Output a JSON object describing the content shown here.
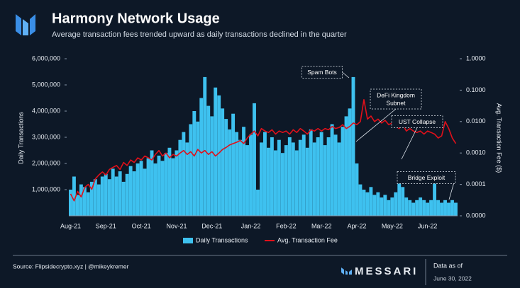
{
  "chart_data": {
    "type": "bar-line",
    "title": "Harmony Network Usage",
    "subtitle": "Average transaction fees trended upward as daily transactions declined in the quarter",
    "ylabel": "Daily Transactions",
    "y2label": "Avg. Transaction Fee ($)",
    "categories": [
      "Aug-21",
      null,
      null,
      null,
      null,
      null,
      null,
      null,
      null,
      null,
      "Sep-21",
      null,
      null,
      null,
      null,
      null,
      null,
      null,
      null,
      null,
      "Oct-21",
      null,
      null,
      null,
      null,
      null,
      null,
      null,
      null,
      null,
      "Nov-21",
      null,
      null,
      null,
      null,
      null,
      null,
      null,
      null,
      null,
      "Dec-21",
      null,
      null,
      null,
      null,
      null,
      null,
      null,
      null,
      null,
      null,
      "Jan-22",
      null,
      null,
      null,
      null,
      null,
      null,
      null,
      null,
      null,
      "Feb-22",
      null,
      null,
      null,
      null,
      null,
      null,
      null,
      null,
      null,
      "Mar-22",
      null,
      null,
      null,
      null,
      null,
      null,
      null,
      null,
      null,
      "Apr-22",
      null,
      null,
      null,
      null,
      null,
      null,
      null,
      null,
      null,
      "May-22",
      null,
      null,
      null,
      null,
      null,
      null,
      null,
      null,
      null,
      "Jun-22",
      null,
      null,
      null,
      null,
      null,
      null,
      null,
      null
    ],
    "series": [
      {
        "name": "Daily Transactions",
        "color": "#3ec1ef",
        "axis": "y",
        "values": [
          1000000,
          1500000,
          800000,
          1200000,
          1100000,
          900000,
          1300000,
          1400000,
          1200000,
          1500000,
          1600000,
          1400000,
          1800000,
          1500000,
          1700000,
          1300000,
          1600000,
          1900000,
          1700000,
          2000000,
          2100000,
          1800000,
          2200000,
          2500000,
          2000000,
          2300000,
          2100000,
          2400000,
          2600000,
          2200000,
          2500000,
          2900000,
          3200000,
          2800000,
          3500000,
          4000000,
          3600000,
          4500000,
          5300000,
          4200000,
          3800000,
          4900000,
          4600000,
          4100000,
          3700000,
          3300000,
          3900000,
          3200000,
          2900000,
          3400000,
          2700000,
          3100000,
          4300000,
          1000000,
          2800000,
          3200000,
          2600000,
          3000000,
          2500000,
          2900000,
          2400000,
          2700000,
          3000000,
          2800000,
          2500000,
          2900000,
          3100000,
          2600000,
          3300000,
          2800000,
          3000000,
          3200000,
          2700000,
          3000000,
          3500000,
          3100000,
          2800000,
          3400000,
          3800000,
          4100000,
          5300000,
          2000000,
          1200000,
          1000000,
          900000,
          1100000,
          800000,
          900000,
          700000,
          800000,
          600000,
          700000,
          900000,
          1400000,
          1100000,
          700000,
          600000,
          500000,
          600000,
          700000,
          600000,
          500000,
          600000,
          1500000,
          600000,
          500000,
          600000,
          500000,
          600000,
          500000
        ]
      },
      {
        "name": "Avg. Transaction Fee",
        "color": "#e0101a",
        "axis": "y2",
        "values": [
          5e-05,
          3e-05,
          6e-05,
          4e-05,
          8e-05,
          0.0001,
          7e-05,
          0.00015,
          0.0002,
          0.00025,
          0.0002,
          0.0003,
          0.00035,
          0.0004,
          0.0003,
          0.0005,
          0.0004,
          0.0006,
          0.0005,
          0.0007,
          0.0006,
          0.0008,
          0.0007,
          0.0006,
          0.0009,
          0.0012,
          0.0008,
          0.001,
          0.0007,
          0.0009,
          0.0008,
          0.001,
          0.0012,
          0.0009,
          0.0011,
          0.0008,
          0.0013,
          0.001,
          0.0012,
          0.0009,
          0.0011,
          0.0008,
          0.001,
          0.0013,
          0.0015,
          0.0018,
          0.002,
          0.0022,
          0.0025,
          0.002,
          0.003,
          0.004,
          0.005,
          0.0035,
          0.006,
          0.005,
          0.0045,
          0.0055,
          0.004,
          0.005,
          0.0045,
          0.005,
          0.004,
          0.0055,
          0.0045,
          0.006,
          0.005,
          0.004,
          0.0055,
          0.005,
          0.006,
          0.005,
          0.006,
          0.0055,
          0.007,
          0.006,
          0.0065,
          0.008,
          0.006,
          0.007,
          0.009,
          0.008,
          0.01,
          0.05,
          0.012,
          0.015,
          0.01,
          0.012,
          0.009,
          0.011,
          0.008,
          0.009,
          0.007,
          0.006,
          0.008,
          0.005,
          0.006,
          0.005,
          0.0045,
          0.005,
          0.004,
          0.005,
          0.0045,
          0.004,
          0.003,
          0.0035,
          0.01,
          0.006,
          0.003,
          0.002
        ]
      }
    ],
    "ylim": [
      0,
      6000000
    ],
    "yticks": [
      {
        "value": 1000000,
        "label": "1,000,000"
      },
      {
        "value": 2000000,
        "label": "2,000,000"
      },
      {
        "value": 3000000,
        "label": "3,000,000"
      },
      {
        "value": 4000000,
        "label": "4,000,000"
      },
      {
        "value": 5000000,
        "label": "5,000,000"
      },
      {
        "value": 6000000,
        "label": "6,000,000"
      }
    ],
    "y2lim": [
      1e-05,
      1
    ],
    "y2scale": "log",
    "y2ticks": [
      {
        "value": 1e-05,
        "label": "0.0000"
      },
      {
        "value": 0.0001,
        "label": "0.0001"
      },
      {
        "value": 0.001,
        "label": "0.0010"
      },
      {
        "value": 0.01,
        "label": "0.0100"
      },
      {
        "value": 0.1,
        "label": "0.1000"
      },
      {
        "value": 1,
        "label": "1.0000"
      }
    ],
    "legend": "bottom",
    "annotations": [
      {
        "lines": [
          "Spam Bots"
        ],
        "index": 79
      },
      {
        "lines": [
          "DeFi Kingdom",
          "Subnet"
        ],
        "index": 83
      },
      {
        "lines": [
          "UST Collapse"
        ],
        "index": 93
      },
      {
        "lines": [
          "Bridge Exploit"
        ],
        "index": 103
      }
    ]
  },
  "footer": {
    "source": "Source: Flipsidecrypto.xyz | @mikeykremer",
    "brand": "MESSARI",
    "date_label": "Data as of",
    "date": "June 30, 2022"
  }
}
